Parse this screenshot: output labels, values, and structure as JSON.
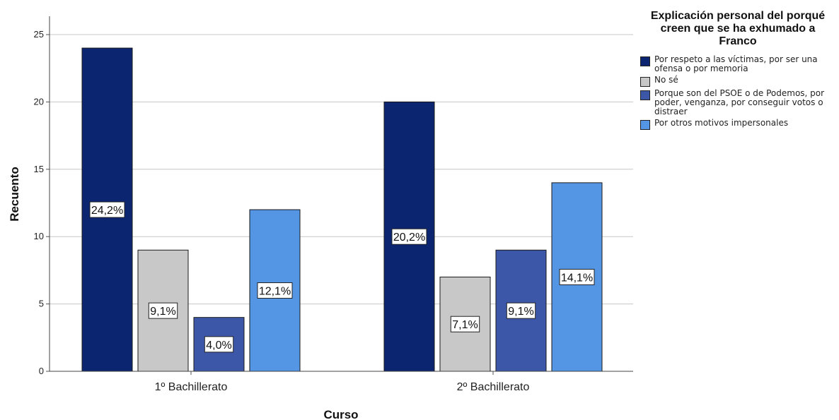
{
  "chart_data": {
    "type": "bar",
    "title": "",
    "xlabel": "Curso",
    "ylabel": "Recuento",
    "ylim": [
      0,
      25
    ],
    "yticks": [
      0,
      5,
      10,
      15,
      20,
      25
    ],
    "grid": true,
    "legend_position": "right",
    "legend_title": "Explicación personal del porqué creen que se ha exhumado a Franco",
    "categories": [
      "1º Bachillerato",
      "2º Bachillerato"
    ],
    "series": [
      {
        "name": "Por respeto a las víctimas, por ser una ofensa o por memoria",
        "color": "#0b2570",
        "values": [
          24,
          20
        ],
        "labels": [
          "24,2%",
          "20,2%"
        ]
      },
      {
        "name": "No sé",
        "color": "#c8c8c8",
        "values": [
          9,
          7
        ],
        "labels": [
          "9,1%",
          "7,1%"
        ]
      },
      {
        "name": "Porque son del PSOE o de Podemos, por poder, venganza, por conseguir votos o distraer",
        "color": "#3d57a8",
        "values": [
          4,
          9
        ],
        "labels": [
          "4,0%",
          "9,1%"
        ]
      },
      {
        "name": "Por otros motivos impersonales",
        "color": "#5496e3",
        "values": [
          12,
          14
        ],
        "labels": [
          "12,1%",
          "14,1%"
        ]
      }
    ]
  }
}
